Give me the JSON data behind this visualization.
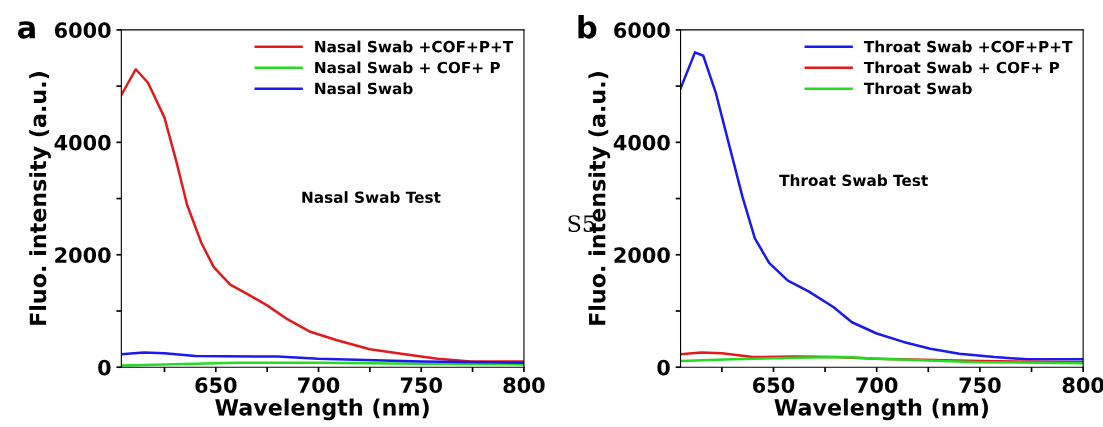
{
  "chart_data": [
    {
      "type": "line",
      "title": "a",
      "xlabel": "Wavelength (nm)",
      "ylabel": "Fluo. intensity (a.u.)",
      "xlim": [
        604,
        800
      ],
      "ylim": [
        0,
        6000
      ],
      "xticks": [
        {
          "value": 625,
          "label": null
        },
        650,
        {
          "value": 675,
          "label": null
        },
        700,
        {
          "value": 725,
          "label": null
        },
        750,
        {
          "value": 775,
          "label": null
        },
        800
      ],
      "yticks": [
        0,
        {
          "value": 1000,
          "label": null
        },
        2000,
        {
          "value": 3000,
          "label": null
        },
        4000,
        {
          "value": 5000,
          "label": null
        },
        6000
      ],
      "legend": "top right",
      "grid": false,
      "annotations": [
        "Nasal Swab Test"
      ],
      "series": [
        {
          "name": "Nasal Swab +COF+P+T",
          "color": "#e31a1c",
          "x": [
            604,
            611,
            617,
            625,
            631,
            636,
            643,
            649,
            657,
            665,
            675,
            685,
            696,
            709,
            725,
            742,
            758,
            774,
            800
          ],
          "values": [
            4840,
            5300,
            5060,
            4440,
            3630,
            2890,
            2210,
            1780,
            1470,
            1310,
            1100,
            850,
            630,
            480,
            320,
            230,
            150,
            100,
            100
          ]
        },
        {
          "name": "Nasal Swab + COF+ P",
          "color": "#22dd22",
          "x": [
            604,
            640,
            660,
            700,
            750,
            800
          ],
          "values": [
            30,
            60,
            80,
            80,
            60,
            50
          ]
        },
        {
          "name": "Nasal Swab",
          "color": "#1a1aee",
          "x": [
            604,
            615,
            625,
            640,
            680,
            700,
            750,
            800
          ],
          "values": [
            230,
            260,
            250,
            200,
            190,
            150,
            100,
            80
          ]
        }
      ]
    },
    {
      "type": "line",
      "title": "b",
      "xlabel": "Wavelength (nm)",
      "ylabel": "Fluo. intensity (a.u.)",
      "xlim": [
        605,
        800
      ],
      "ylim": [
        0,
        6000
      ],
      "xticks": [
        {
          "value": 625,
          "label": null
        },
        650,
        {
          "value": 675,
          "label": null
        },
        700,
        {
          "value": 725,
          "label": null
        },
        750,
        {
          "value": 775,
          "label": null
        },
        800
      ],
      "yticks": [
        0,
        {
          "value": 1000,
          "label": null
        },
        2000,
        {
          "value": 3000,
          "label": null
        },
        4000,
        {
          "value": 5000,
          "label": null
        },
        6000
      ],
      "legend": "top right",
      "grid": false,
      "annotations": [
        "Throat Swab Test",
        "S5"
      ],
      "series": [
        {
          "name": "Throat Swab +COF+P+T",
          "color": "#1a1aee",
          "x": [
            605,
            612,
            616,
            622,
            628,
            635,
            641,
            648,
            657,
            667,
            679,
            688,
            700,
            713,
            726,
            740,
            757,
            773,
            800
          ],
          "values": [
            4960,
            5600,
            5540,
            4890,
            4030,
            3030,
            2290,
            1850,
            1540,
            1350,
            1070,
            800,
            600,
            450,
            330,
            240,
            180,
            140,
            140
          ]
        },
        {
          "name": "Throat Swab + COF+ P",
          "color": "#e31a1c",
          "x": [
            605,
            615,
            625,
            640,
            660,
            680,
            700,
            750,
            800
          ],
          "values": [
            230,
            260,
            250,
            180,
            190,
            180,
            150,
            110,
            90
          ]
        },
        {
          "name": "Throat Swab",
          "color": "#22dd22",
          "x": [
            605,
            630,
            660,
            685,
            700,
            750,
            800
          ],
          "values": [
            110,
            140,
            170,
            180,
            150,
            90,
            70
          ]
        }
      ]
    }
  ]
}
